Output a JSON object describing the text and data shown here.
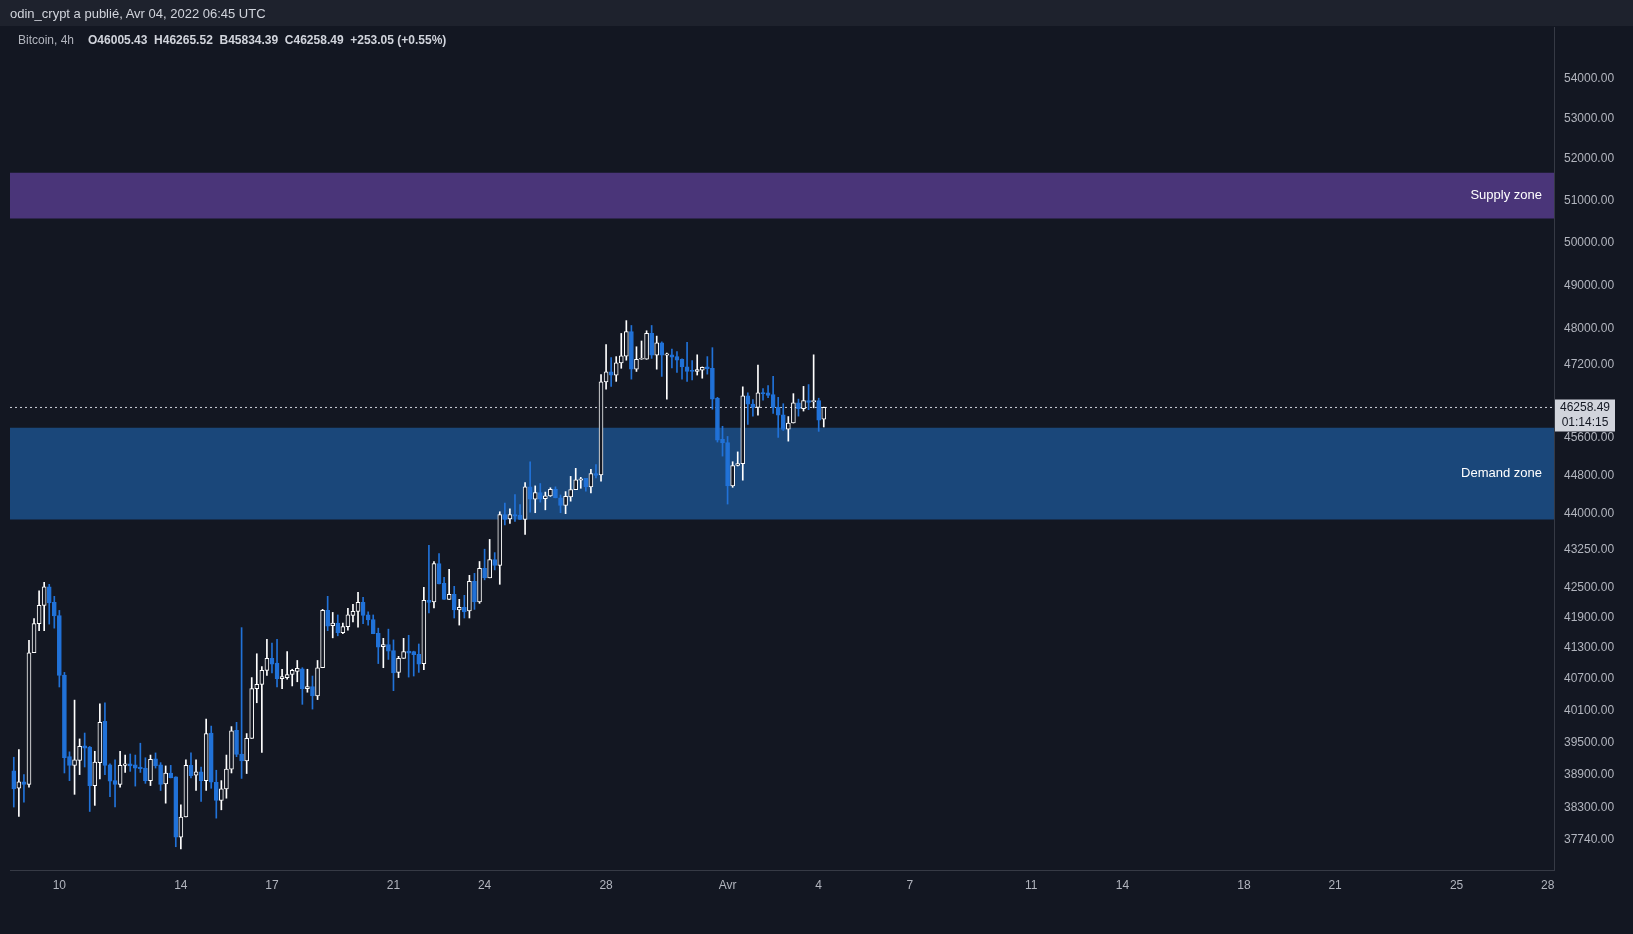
{
  "chart_data": {
    "type": "candlestick",
    "title": "Bitcoin, 4h",
    "subtitle": "O46005.43  H46265.52  B45834.39  C46258.49  +253.05 (+0.55%)",
    "annotations": [
      "odin_crypt a publié, Avr 04, 2022 06:45 UTC",
      "01:14:15"
    ],
    "log": true,
    "x": [
      "2022-03-08T12:00",
      "2022-03-08T16:00",
      "2022-03-08T20:00",
      "2022-03-09T00:00",
      "2022-03-09T04:00",
      "2022-03-09T08:00",
      "2022-03-09T12:00",
      "2022-03-09T16:00",
      "2022-03-09T20:00",
      "2022-03-10T00:00",
      "2022-03-10T04:00",
      "2022-03-10T08:00",
      "2022-03-10T12:00",
      "2022-03-10T16:00",
      "2022-03-10T20:00",
      "2022-03-11T00:00",
      "2022-03-11T04:00",
      "2022-03-11T08:00",
      "2022-03-11T12:00",
      "2022-03-11T16:00",
      "2022-03-11T20:00",
      "2022-03-12T00:00",
      "2022-03-12T04:00",
      "2022-03-12T08:00",
      "2022-03-12T12:00",
      "2022-03-12T16:00",
      "2022-03-12T20:00",
      "2022-03-13T00:00",
      "2022-03-13T04:00",
      "2022-03-13T08:00",
      "2022-03-13T12:00",
      "2022-03-13T16:00",
      "2022-03-13T20:00",
      "2022-03-14T00:00",
      "2022-03-14T04:00",
      "2022-03-14T08:00",
      "2022-03-14T12:00",
      "2022-03-14T16:00",
      "2022-03-14T20:00",
      "2022-03-15T00:00",
      "2022-03-15T04:00",
      "2022-03-15T08:00",
      "2022-03-15T12:00",
      "2022-03-15T16:00",
      "2022-03-15T20:00",
      "2022-03-16T00:00",
      "2022-03-16T04:00",
      "2022-03-16T08:00",
      "2022-03-16T12:00",
      "2022-03-16T16:00",
      "2022-03-16T20:00",
      "2022-03-17T00:00",
      "2022-03-17T04:00",
      "2022-03-17T08:00",
      "2022-03-17T12:00",
      "2022-03-17T16:00",
      "2022-03-17T20:00",
      "2022-03-18T00:00",
      "2022-03-18T04:00",
      "2022-03-18T08:00",
      "2022-03-18T12:00",
      "2022-03-18T16:00",
      "2022-03-18T20:00",
      "2022-03-19T00:00",
      "2022-03-19T04:00",
      "2022-03-19T08:00",
      "2022-03-19T12:00",
      "2022-03-19T16:00",
      "2022-03-19T20:00",
      "2022-03-20T00:00",
      "2022-03-20T04:00",
      "2022-03-20T08:00",
      "2022-03-20T12:00",
      "2022-03-20T16:00",
      "2022-03-20T20:00",
      "2022-03-21T00:00",
      "2022-03-21T04:00",
      "2022-03-21T08:00",
      "2022-03-21T12:00",
      "2022-03-21T16:00",
      "2022-03-21T20:00",
      "2022-03-22T00:00",
      "2022-03-22T04:00",
      "2022-03-22T08:00",
      "2022-03-22T12:00",
      "2022-03-22T16:00",
      "2022-03-22T20:00",
      "2022-03-23T00:00",
      "2022-03-23T04:00",
      "2022-03-23T08:00",
      "2022-03-23T12:00",
      "2022-03-23T16:00",
      "2022-03-23T20:00",
      "2022-03-24T00:00",
      "2022-03-24T04:00",
      "2022-03-24T08:00",
      "2022-03-24T12:00",
      "2022-03-24T16:00",
      "2022-03-24T20:00",
      "2022-03-25T00:00",
      "2022-03-25T04:00",
      "2022-03-25T08:00",
      "2022-03-25T12:00",
      "2022-03-25T16:00",
      "2022-03-25T20:00",
      "2022-03-26T00:00",
      "2022-03-26T04:00",
      "2022-03-26T08:00",
      "2022-03-26T12:00",
      "2022-03-26T16:00",
      "2022-03-26T20:00",
      "2022-03-27T00:00",
      "2022-03-27T04:00",
      "2022-03-27T08:00",
      "2022-03-27T12:00",
      "2022-03-27T16:00",
      "2022-03-27T20:00",
      "2022-03-28T00:00",
      "2022-03-28T04:00",
      "2022-03-28T08:00",
      "2022-03-28T12:00",
      "2022-03-28T16:00",
      "2022-03-28T20:00",
      "2022-03-29T00:00",
      "2022-03-29T04:00",
      "2022-03-29T08:00",
      "2022-03-29T12:00",
      "2022-03-29T16:00",
      "2022-03-29T20:00",
      "2022-03-30T00:00",
      "2022-03-30T04:00",
      "2022-03-30T08:00",
      "2022-03-30T12:00",
      "2022-03-30T16:00",
      "2022-03-30T20:00",
      "2022-03-31T00:00",
      "2022-03-31T04:00",
      "2022-03-31T08:00",
      "2022-03-31T12:00",
      "2022-03-31T16:00",
      "2022-03-31T20:00",
      "2022-04-01T00:00",
      "2022-04-01T04:00",
      "2022-04-01T08:00",
      "2022-04-01T12:00",
      "2022-04-01T16:00",
      "2022-04-01T20:00",
      "2022-04-02T00:00",
      "2022-04-02T04:00",
      "2022-04-02T08:00",
      "2022-04-02T12:00",
      "2022-04-02T16:00",
      "2022-04-02T20:00",
      "2022-04-03T00:00",
      "2022-04-03T04:00",
      "2022-04-03T08:00",
      "2022-04-03T12:00",
      "2022-04-03T16:00",
      "2022-04-03T20:00",
      "2022-04-04T00:00",
      "2022-04-04T04:00"
    ],
    "ohlc": [
      [
        38980,
        39230,
        38320,
        38650
      ],
      [
        38660,
        39370,
        38150,
        38780
      ],
      [
        38780,
        38910,
        38410,
        38730
      ],
      [
        38730,
        41450,
        38680,
        41210
      ],
      [
        41210,
        41880,
        41210,
        41780
      ],
      [
        41780,
        42430,
        41640,
        42140
      ],
      [
        42140,
        42600,
        41640,
        42510
      ],
      [
        42510,
        42560,
        41770,
        42190
      ],
      [
        42200,
        42320,
        41690,
        41930
      ],
      [
        41940,
        42040,
        40550,
        40770
      ],
      [
        40780,
        40830,
        38940,
        39220
      ],
      [
        39240,
        39330,
        38800,
        39080
      ],
      [
        39080,
        40300,
        38550,
        39180
      ],
      [
        39170,
        39570,
        38910,
        39430
      ],
      [
        39440,
        39680,
        39050,
        39400
      ],
      [
        39420,
        39430,
        38240,
        38710
      ],
      [
        38710,
        39340,
        38350,
        39140
      ],
      [
        39130,
        40230,
        38830,
        39880
      ],
      [
        39900,
        40250,
        38910,
        39080
      ],
      [
        39090,
        39110,
        38510,
        38790
      ],
      [
        38800,
        39180,
        38320,
        38730
      ],
      [
        38730,
        39340,
        38680,
        39080
      ],
      [
        39080,
        39270,
        38950,
        39110
      ],
      [
        39110,
        39290,
        38970,
        39070
      ],
      [
        39090,
        39270,
        38700,
        39030
      ],
      [
        39050,
        39490,
        38950,
        39020
      ],
      [
        39030,
        39220,
        38750,
        38800
      ],
      [
        38800,
        39270,
        38710,
        39190
      ],
      [
        39200,
        39310,
        39030,
        39070
      ],
      [
        39090,
        39130,
        38620,
        38730
      ],
      [
        38740,
        39070,
        38390,
        38940
      ],
      [
        38940,
        39080,
        38850,
        38850
      ],
      [
        38870,
        38870,
        37610,
        37780
      ],
      [
        37780,
        38360,
        37570,
        38140
      ],
      [
        38140,
        39180,
        38140,
        39080
      ],
      [
        39080,
        39310,
        38850,
        38890
      ],
      [
        38900,
        39180,
        38620,
        38960
      ],
      [
        38960,
        39050,
        38420,
        38800
      ],
      [
        38800,
        39940,
        38620,
        39670
      ],
      [
        39680,
        39810,
        38660,
        38770
      ],
      [
        38770,
        38990,
        38120,
        38440
      ],
      [
        38440,
        38800,
        38270,
        38650
      ],
      [
        38650,
        39270,
        38480,
        39010
      ],
      [
        39010,
        39800,
        38940,
        39720
      ],
      [
        39730,
        39880,
        39240,
        39280
      ],
      [
        39290,
        41700,
        38840,
        39160
      ],
      [
        39160,
        39670,
        38930,
        39580
      ],
      [
        39580,
        40730,
        39580,
        40520
      ],
      [
        40520,
        41190,
        40250,
        40600
      ],
      [
        40600,
        40940,
        39320,
        40870
      ],
      [
        40870,
        41470,
        40770,
        41100
      ],
      [
        41100,
        41400,
        40820,
        40990
      ],
      [
        41010,
        41470,
        40550,
        40710
      ],
      [
        40710,
        40890,
        40520,
        40750
      ],
      [
        40730,
        41230,
        40700,
        40790
      ],
      [
        40790,
        40890,
        40570,
        40870
      ],
      [
        40850,
        41060,
        40650,
        40910
      ],
      [
        40900,
        40920,
        40220,
        40520
      ],
      [
        40520,
        40890,
        40450,
        40560
      ],
      [
        40560,
        40760,
        40130,
        40380
      ],
      [
        40380,
        41060,
        40310,
        40920
      ],
      [
        40920,
        42060,
        40920,
        42040
      ],
      [
        42040,
        42320,
        41640,
        41730
      ],
      [
        41740,
        42000,
        41500,
        41790
      ],
      [
        41790,
        41950,
        41540,
        41600
      ],
      [
        41600,
        41790,
        41580,
        41720
      ],
      [
        41720,
        42080,
        41650,
        41950
      ],
      [
        41940,
        42160,
        41810,
        42020
      ],
      [
        42020,
        42400,
        41710,
        42200
      ],
      [
        42200,
        42300,
        41780,
        41940
      ],
      [
        41950,
        42010,
        41750,
        41850
      ],
      [
        41860,
        41950,
        41580,
        41580
      ],
      [
        41590,
        41690,
        41000,
        41320
      ],
      [
        41330,
        41490,
        40920,
        41370
      ],
      [
        41370,
        41670,
        41080,
        41240
      ],
      [
        41250,
        41460,
        40480,
        40820
      ],
      [
        40830,
        41140,
        40730,
        41100
      ],
      [
        41100,
        41490,
        41100,
        41230
      ],
      [
        41240,
        41550,
        40740,
        41200
      ],
      [
        41230,
        41240,
        40760,
        41170
      ],
      [
        41180,
        41380,
        40830,
        40990
      ],
      [
        41000,
        42500,
        40880,
        42240
      ],
      [
        42240,
        43350,
        41990,
        42200
      ],
      [
        42210,
        43020,
        42090,
        42980
      ],
      [
        42980,
        43180,
        42570,
        42570
      ],
      [
        42580,
        42700,
        42260,
        42260
      ],
      [
        42260,
        42860,
        42260,
        42360
      ],
      [
        42360,
        42520,
        41890,
        42050
      ],
      [
        42050,
        42260,
        41750,
        42100
      ],
      [
        42100,
        42340,
        41890,
        42010
      ],
      [
        42030,
        42740,
        41890,
        42620
      ],
      [
        42620,
        42780,
        42060,
        42210
      ],
      [
        42210,
        43020,
        42180,
        42880
      ],
      [
        42880,
        43270,
        42650,
        42690
      ],
      [
        42690,
        43470,
        42690,
        43060
      ],
      [
        43060,
        43200,
        42850,
        42940
      ],
      [
        42940,
        44040,
        42560,
        43980
      ],
      [
        43980,
        44220,
        43770,
        43880
      ],
      [
        43890,
        44100,
        43800,
        43980
      ],
      [
        43980,
        44400,
        43840,
        43950
      ],
      [
        43970,
        44190,
        43880,
        43880
      ],
      [
        43880,
        44650,
        43570,
        44560
      ],
      [
        44560,
        45090,
        44030,
        44300
      ],
      [
        44300,
        44580,
        44020,
        44440
      ],
      [
        44440,
        44630,
        44240,
        44300
      ],
      [
        44310,
        44450,
        44080,
        44370
      ],
      [
        44370,
        44540,
        44360,
        44510
      ],
      [
        44510,
        44560,
        44330,
        44330
      ],
      [
        44330,
        44390,
        44020,
        44170
      ],
      [
        44170,
        44460,
        44000,
        44360
      ],
      [
        44350,
        44780,
        44260,
        44500
      ],
      [
        44500,
        44950,
        44500,
        44710
      ],
      [
        44700,
        44760,
        44530,
        44730
      ],
      [
        44740,
        44740,
        44470,
        44560
      ],
      [
        44560,
        44930,
        44430,
        44840
      ],
      [
        44840,
        45030,
        44750,
        44800
      ],
      [
        44810,
        46980,
        44680,
        46820
      ],
      [
        46820,
        47650,
        46660,
        47040
      ],
      [
        47040,
        47360,
        46720,
        46970
      ],
      [
        46970,
        47380,
        46830,
        47240
      ],
      [
        47240,
        47900,
        47120,
        47400
      ],
      [
        47390,
        48190,
        47300,
        47940
      ],
      [
        47940,
        48080,
        46880,
        47100
      ],
      [
        47100,
        47600,
        47050,
        47320
      ],
      [
        47320,
        47730,
        47320,
        47330
      ],
      [
        47320,
        47960,
        47320,
        47900
      ],
      [
        47900,
        48080,
        47340,
        47410
      ],
      [
        47410,
        47840,
        47100,
        47690
      ],
      [
        47690,
        47710,
        46940,
        47410
      ],
      [
        47410,
        47460,
        46440,
        47440
      ],
      [
        47420,
        47550,
        47130,
        47370
      ],
      [
        47380,
        47490,
        47030,
        47300
      ],
      [
        47320,
        47330,
        46880,
        47150
      ],
      [
        47150,
        47700,
        46830,
        47050
      ],
      [
        47060,
        47290,
        46860,
        47050
      ],
      [
        47050,
        47420,
        46970,
        47090
      ],
      [
        47080,
        47150,
        46900,
        47140
      ],
      [
        47150,
        47380,
        46990,
        47110
      ],
      [
        47120,
        47580,
        46220,
        46440
      ],
      [
        46460,
        46480,
        45510,
        45550
      ],
      [
        45570,
        45850,
        45210,
        45490
      ],
      [
        45500,
        45630,
        44200,
        44580
      ],
      [
        44580,
        45090,
        44550,
        45010
      ],
      [
        45010,
        45300,
        45000,
        45050
      ],
      [
        45050,
        46710,
        44700,
        46510
      ],
      [
        46510,
        46580,
        45890,
        46330
      ],
      [
        46330,
        46430,
        46070,
        46260
      ],
      [
        46260,
        47190,
        46090,
        46580
      ],
      [
        46580,
        46670,
        46420,
        46560
      ],
      [
        46580,
        46740,
        46470,
        46520
      ],
      [
        46540,
        46940,
        46130,
        46260
      ],
      [
        46260,
        46480,
        45610,
        46090
      ],
      [
        46100,
        46340,
        45760,
        45780
      ],
      [
        45790,
        46060,
        45530,
        45920
      ],
      [
        45920,
        46560,
        45920,
        46360
      ],
      [
        46360,
        46440,
        46070,
        46230
      ],
      [
        46230,
        46720,
        46180,
        46410
      ],
      [
        46410,
        46760,
        46210,
        46370
      ],
      [
        46380,
        47420,
        46250,
        46410
      ],
      [
        46410,
        46460,
        45740,
        45980
      ],
      [
        46005.43,
        46265.52,
        45834.39,
        46258.49
      ]
    ],
    "colors": [
      "#2172d8",
      "#ffffff",
      "#2172d8",
      "#ffffff",
      "#ffffff",
      "#ffffff",
      "#ffffff",
      "#2172d8",
      "#2172d8",
      "#2172d8",
      "#2172d8",
      "#2172d8",
      "#ffffff",
      "#ffffff",
      "#2172d8",
      "#2172d8",
      "#ffffff",
      "#ffffff",
      "#2172d8",
      "#2172d8",
      "#2172d8",
      "#ffffff",
      "#ffffff",
      "#2172d8",
      "#2172d8",
      "#2172d8",
      "#2172d8",
      "#ffffff",
      "#2172d8",
      "#2172d8",
      "#ffffff",
      "#2172d8",
      "#2172d8",
      "#ffffff",
      "#ffffff",
      "#2172d8",
      "#ffffff",
      "#2172d8",
      "#ffffff",
      "#2172d8",
      "#2172d8",
      "#ffffff",
      "#ffffff",
      "#ffffff",
      "#2172d8",
      "#2172d8",
      "#ffffff",
      "#ffffff",
      "#ffffff",
      "#ffffff",
      "#ffffff",
      "#2172d8",
      "#2172d8",
      "#ffffff",
      "#ffffff",
      "#ffffff",
      "#ffffff",
      "#2172d8",
      "#ffffff",
      "#2172d8",
      "#ffffff",
      "#ffffff",
      "#2172d8",
      "#ffffff",
      "#2172d8",
      "#ffffff",
      "#ffffff",
      "#ffffff",
      "#ffffff",
      "#2172d8",
      "#2172d8",
      "#2172d8",
      "#2172d8",
      "#ffffff",
      "#2172d8",
      "#2172d8",
      "#ffffff",
      "#ffffff",
      "#2172d8",
      "#2172d8",
      "#2172d8",
      "#ffffff",
      "#2172d8",
      "#ffffff",
      "#2172d8",
      "#2172d8",
      "#ffffff",
      "#2172d8",
      "#ffffff",
      "#2172d8",
      "#ffffff",
      "#2172d8",
      "#ffffff",
      "#2172d8",
      "#ffffff",
      "#2172d8",
      "#ffffff",
      "#2172d8",
      "#ffffff",
      "#2172d8",
      "#2172d8",
      "#ffffff",
      "#2172d8",
      "#ffffff",
      "#2172d8",
      "#ffffff",
      "#ffffff",
      "#2172d8",
      "#2172d8",
      "#ffffff",
      "#ffffff",
      "#ffffff",
      "#ffffff",
      "#2172d8",
      "#ffffff",
      "#2172d8",
      "#ffffff",
      "#ffffff",
      "#2172d8",
      "#ffffff",
      "#ffffff",
      "#ffffff",
      "#2172d8",
      "#ffffff",
      "#ffffff",
      "#ffffff",
      "#2172d8",
      "#ffffff",
      "#2172d8",
      "#ffffff",
      "#2172d8",
      "#2172d8",
      "#2172d8",
      "#2172d8",
      "#2172d8",
      "#ffffff",
      "#ffffff",
      "#2172d8",
      "#2172d8",
      "#2172d8",
      "#2172d8",
      "#2172d8",
      "#ffffff",
      "#ffffff",
      "#ffffff",
      "#2172d8",
      "#2172d8",
      "#ffffff",
      "#2172d8",
      "#2172d8",
      "#2172d8",
      "#2172d8",
      "#2172d8",
      "#ffffff",
      "#ffffff",
      "#2172d8",
      "#ffffff",
      "#2172d8",
      "#ffffff",
      "#2172d8",
      "#ffffff"
    ],
    "xlim": [
      "2022-03-08T09:00",
      "2022-04-28T05:00"
    ],
    "xticks": [
      {
        "value": "2022-03-10",
        "label": "10"
      },
      {
        "value": "2022-03-14",
        "label": "14"
      },
      {
        "value": "2022-03-17",
        "label": "17"
      },
      {
        "value": "2022-03-21",
        "label": "21"
      },
      {
        "value": "2022-03-24",
        "label": "24"
      },
      {
        "value": "2022-03-28",
        "label": "28"
      },
      {
        "value": "2022-04-01",
        "label": "Avr"
      },
      {
        "value": "2022-04-04",
        "label": "4"
      },
      {
        "value": "2022-04-07",
        "label": "7"
      },
      {
        "value": "2022-04-11",
        "label": "11"
      },
      {
        "value": "2022-04-14",
        "label": "14"
      },
      {
        "value": "2022-04-18",
        "label": "18"
      },
      {
        "value": "2022-04-21",
        "label": "21"
      },
      {
        "value": "2022-04-25",
        "label": "25"
      },
      {
        "value": "2022-04-28",
        "label": "28"
      }
    ],
    "ylim": [
      37200,
      55340
    ],
    "yticks": [
      {
        "value": 37740,
        "label": "37740.00"
      },
      {
        "value": 38300,
        "label": "38300.00"
      },
      {
        "value": 38900,
        "label": "38900.00"
      },
      {
        "value": 39500,
        "label": "39500.00"
      },
      {
        "value": 40100,
        "label": "40100.00"
      },
      {
        "value": 40700,
        "label": "40700.00"
      },
      {
        "value": 41300,
        "label": "41300.00"
      },
      {
        "value": 41900,
        "label": "41900.00"
      },
      {
        "value": 42500,
        "label": "42500.00"
      },
      {
        "value": 43250,
        "label": "43250.00"
      },
      {
        "value": 44000,
        "label": "44000.00"
      },
      {
        "value": 44800,
        "label": "44800.00"
      },
      {
        "value": 45600,
        "label": "45600.00"
      },
      {
        "value": 47200,
        "label": "47200.00"
      },
      {
        "value": 48000,
        "label": "48000.00"
      },
      {
        "value": 49000,
        "label": "49000.00"
      },
      {
        "value": 50000,
        "label": "50000.00"
      },
      {
        "value": 51000,
        "label": "51000.00"
      },
      {
        "value": 52000,
        "label": "52000.00"
      },
      {
        "value": 53000,
        "label": "53000.00"
      },
      {
        "value": 54000,
        "label": "54000.00"
      }
    ],
    "bands": [
      {
        "axis": "y",
        "from": 50566,
        "to": 51670,
        "label": "Supply zone",
        "color": "#4a3579"
      },
      {
        "axis": "y",
        "from": 43880,
        "to": 45820,
        "label": "Demand zone",
        "color": "#1a477a"
      }
    ],
    "ref_lines": [
      {
        "axis": "y",
        "value": 46258.49,
        "label": "46258.49",
        "color": "#d1d4dc",
        "line_style": "dotted"
      }
    ]
  }
}
